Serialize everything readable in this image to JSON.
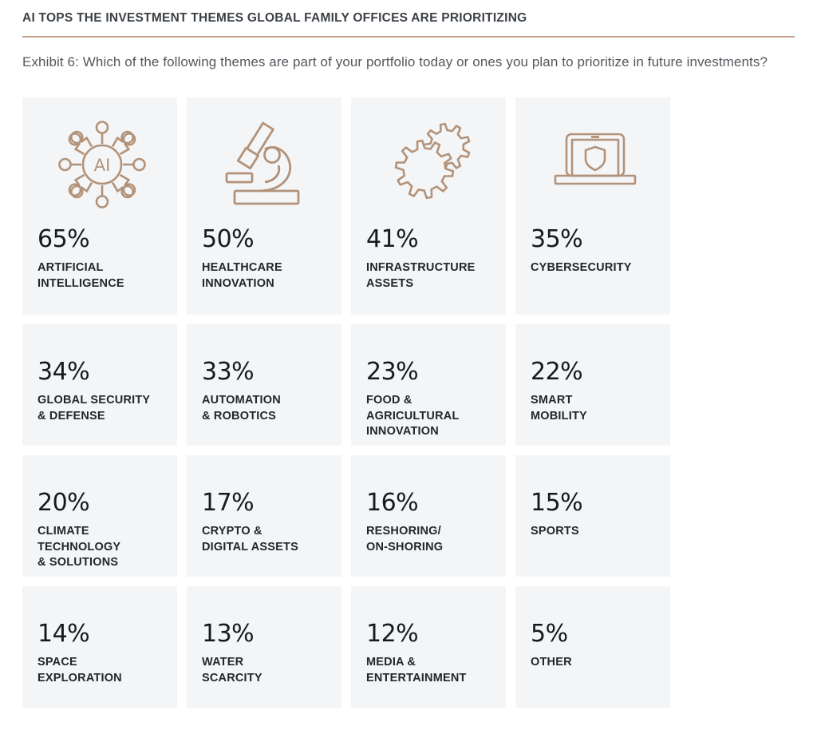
{
  "header": {
    "title": "AI TOPS THE INVESTMENT THEMES GLOBAL FAMILY OFFICES ARE PRIORITIZING"
  },
  "exhibit": {
    "text": "Exhibit 6: Which of the following themes are part of your portfolio today or ones you plan to prioritize in future investments?"
  },
  "colors": {
    "accent_tan": "#b2937a",
    "rule_tan": "#c4a28c",
    "card_bg": "#f4f5f7",
    "title_text": "#3c4147",
    "body_text": "#54575c",
    "value_text": "#17191d",
    "label_text": "#23262a"
  },
  "icons": {
    "ai_center_text": "AI"
  },
  "chart_data": {
    "type": "table",
    "title": "AI TOPS THE INVESTMENT THEMES GLOBAL FAMILY OFFICES ARE PRIORITIZING",
    "subtitle": "Exhibit 6: Which of the following themes are part of your portfolio today or ones you plan to prioritize in future investments?",
    "unit": "%",
    "categories": [
      "ARTIFICIAL INTELLIGENCE",
      "HEALTHCARE INNOVATION",
      "INFRASTRUCTURE ASSETS",
      "CYBERSECURITY",
      "GLOBAL SECURITY & DEFENSE",
      "AUTOMATION & ROBOTICS",
      "FOOD & AGRICULTURAL INNOVATION",
      "SMART MOBILITY",
      "CLIMATE TECHNOLOGY & SOLUTIONS",
      "CRYPTO & DIGITAL ASSETS",
      "RESHORING/ON-SHORING",
      "SPORTS",
      "SPACE EXPLORATION",
      "WATER SCARCITY",
      "MEDIA & ENTERTAINMENT",
      "OTHER"
    ],
    "values": [
      65,
      50,
      41,
      35,
      34,
      33,
      23,
      22,
      20,
      17,
      16,
      15,
      14,
      13,
      12,
      5
    ],
    "items": [
      {
        "value": "65%",
        "label": "ARTIFICIAL\nINTELLIGENCE",
        "icon": "ai-network-icon"
      },
      {
        "value": "50%",
        "label": "HEALTHCARE\nINNOVATION",
        "icon": "microscope-icon"
      },
      {
        "value": "41%",
        "label": "INFRASTRUCTURE\nASSETS",
        "icon": "gears-icon"
      },
      {
        "value": "35%",
        "label": "CYBERSECURITY",
        "icon": "laptop-shield-icon"
      },
      {
        "value": "34%",
        "label": "GLOBAL SECURITY\n& DEFENSE",
        "icon": null
      },
      {
        "value": "33%",
        "label": "AUTOMATION\n& ROBOTICS",
        "icon": null
      },
      {
        "value": "23%",
        "label": "FOOD & AGRICULTURAL\nINNOVATION",
        "icon": null
      },
      {
        "value": "22%",
        "label": "SMART\nMOBILITY",
        "icon": null
      },
      {
        "value": "20%",
        "label": "CLIMATE TECHNOLOGY\n& SOLUTIONS",
        "icon": null
      },
      {
        "value": "17%",
        "label": "CRYPTO &\nDIGITAL ASSETS",
        "icon": null
      },
      {
        "value": "16%",
        "label": "RESHORING/\nON-SHORING",
        "icon": null
      },
      {
        "value": "15%",
        "label": "SPORTS",
        "icon": null
      },
      {
        "value": "14%",
        "label": "SPACE\nEXPLORATION",
        "icon": null
      },
      {
        "value": "13%",
        "label": "WATER\nSCARCITY",
        "icon": null
      },
      {
        "value": "12%",
        "label": "MEDIA &\nENTERTAINMENT",
        "icon": null
      },
      {
        "value": "5%",
        "label": "OTHER",
        "icon": null
      }
    ]
  }
}
